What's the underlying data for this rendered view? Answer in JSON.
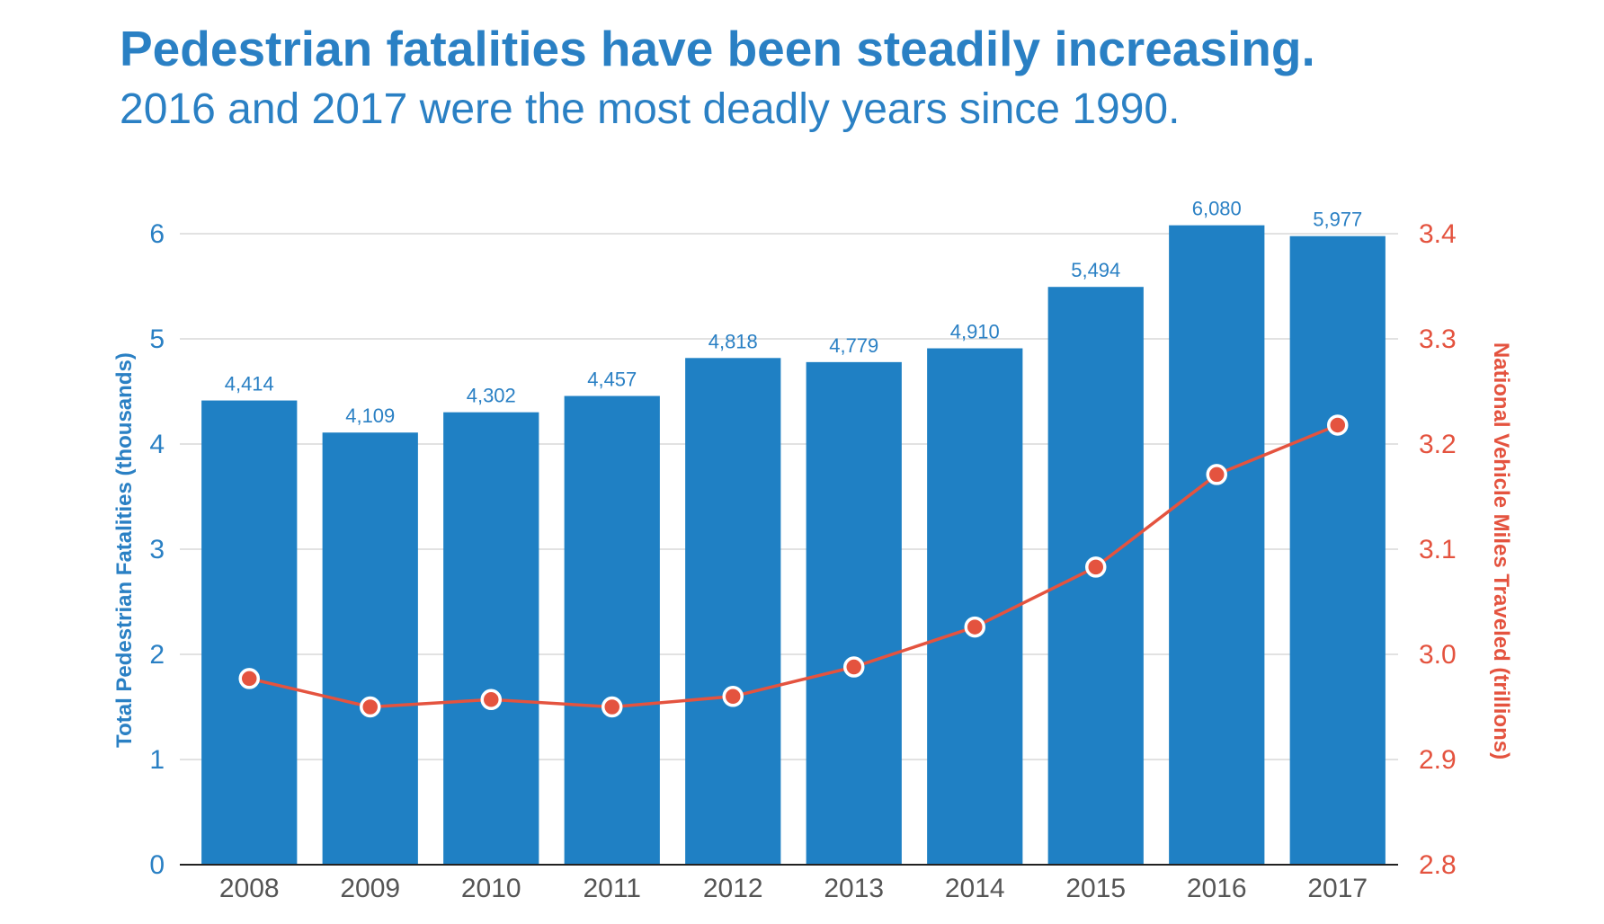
{
  "header": {
    "title": "Pedestrian fatalities have been steadily increasing.",
    "subtitle": "2016 and 2017 were the most deadly years since 1990."
  },
  "colors": {
    "bar": "#1f80c4",
    "line": "#e4533f",
    "grid": "#d9d9d9",
    "text_blue": "#2a80c4",
    "text_red": "#e4533f",
    "tick_gray": "#555555"
  },
  "chart_data": {
    "type": "bar",
    "title": "Pedestrian fatalities have been steadily increasing.",
    "subtitle": "2016 and 2017 were the most deadly years since 1990.",
    "categories": [
      "2008",
      "2009",
      "2010",
      "2011",
      "2012",
      "2013",
      "2014",
      "2015",
      "2016",
      "2017"
    ],
    "series": [
      {
        "type": "bar",
        "axis": "left",
        "values": [
          4.414,
          4.109,
          4.302,
          4.457,
          4.818,
          4.779,
          4.91,
          5.494,
          6.08,
          5.977
        ],
        "labels": [
          "4,414",
          "4,109",
          "4,302",
          "4,457",
          "4,818",
          "4,779",
          "4,910",
          "5,494",
          "6,080",
          "5,977"
        ]
      },
      {
        "type": "line",
        "axis": "right",
        "values": [
          2.977,
          2.95,
          2.957,
          2.95,
          2.96,
          2.988,
          3.026,
          3.083,
          3.171,
          3.218
        ]
      }
    ],
    "ylabel": "Total Pedestrian Fatalities (thousands)",
    "ylim": [
      0,
      6
    ],
    "yticks": [
      "0",
      "1",
      "2",
      "3",
      "4",
      "5",
      "6"
    ],
    "y2label": "National Vehicle Miles Traveled (trillions)",
    "y2lim": [
      2.8,
      3.4
    ],
    "y2ticks": [
      "2.8",
      "2.9",
      "3.0",
      "3.1",
      "3.2",
      "3.3",
      "3.4"
    ],
    "grid": true,
    "legend": "none"
  }
}
